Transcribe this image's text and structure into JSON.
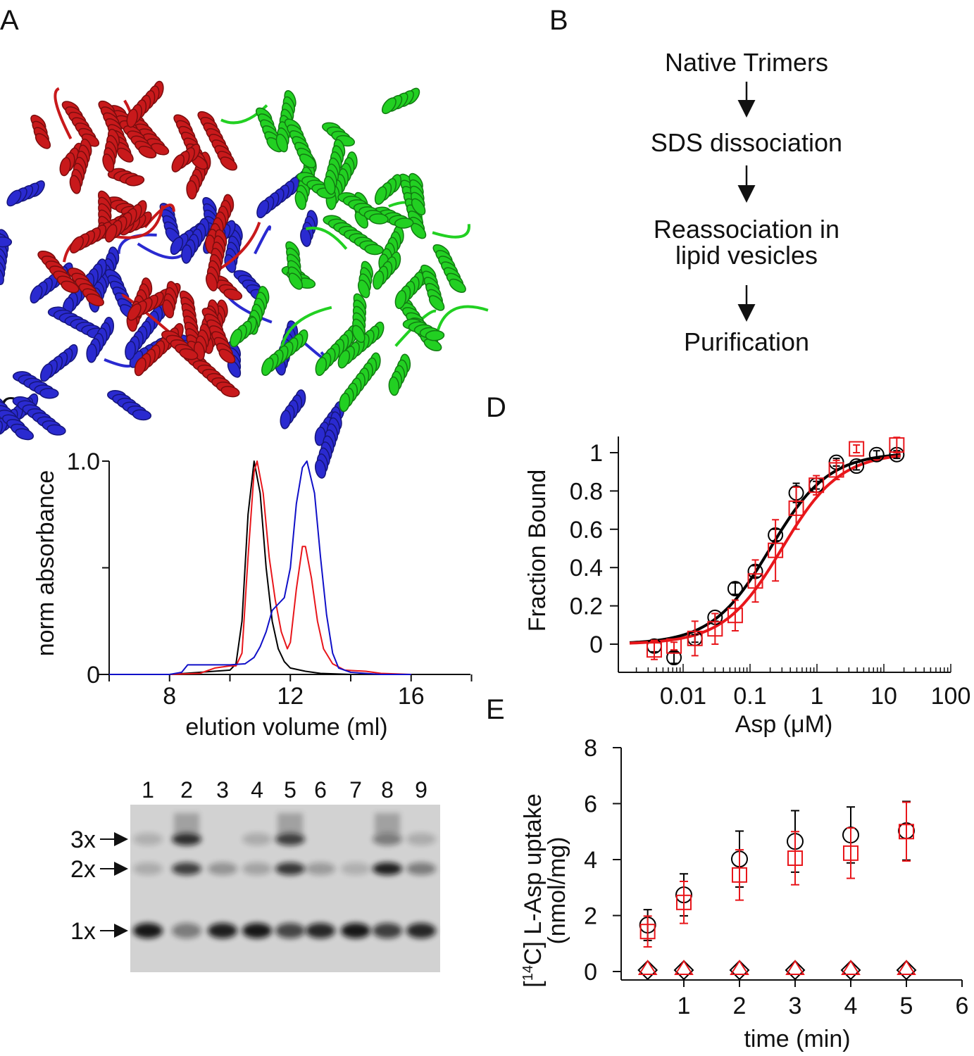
{
  "panels": {
    "a": "A",
    "b": "B",
    "c": "C",
    "d": "D",
    "e": "E"
  },
  "panel_a": {
    "chain_colors": [
      "#c8191b",
      "#2a2ad0",
      "#22d022"
    ]
  },
  "flowchart": {
    "steps": [
      "Native Trimers",
      "SDS dissociation",
      "Reassociation in",
      "lipid vesicles",
      "Purification"
    ]
  },
  "chart_data": [
    {
      "type": "line",
      "panel": "C",
      "xlabel": "elution volume (ml)",
      "ylabel": "norm absorbance",
      "xlim": [
        6,
        18
      ],
      "ylim": [
        0,
        1.0
      ],
      "xticks": [
        8,
        12,
        16
      ],
      "xtick_labels": [
        "8",
        "12",
        "16"
      ],
      "yticks": [
        0,
        0.5,
        1.0
      ],
      "ytick_labels": [
        "0",
        "",
        "1.0"
      ],
      "grid": false,
      "series": [
        {
          "color": "#000000",
          "points": [
            [
              6,
              0
            ],
            [
              8,
              0
            ],
            [
              9,
              0.01
            ],
            [
              10,
              0.02
            ],
            [
              10.2,
              0.05
            ],
            [
              10.4,
              0.25
            ],
            [
              10.6,
              0.75
            ],
            [
              10.8,
              1.0
            ],
            [
              11.0,
              0.85
            ],
            [
              11.2,
              0.5
            ],
            [
              11.4,
              0.25
            ],
            [
              11.6,
              0.12
            ],
            [
              11.8,
              0.06
            ],
            [
              12,
              0.03
            ],
            [
              12.5,
              0.015
            ],
            [
              13,
              0.005
            ],
            [
              14,
              0
            ]
          ]
        },
        {
          "color": "#e8161b",
          "points": [
            [
              6,
              0
            ],
            [
              8,
              0
            ],
            [
              9,
              0.005
            ],
            [
              9.5,
              0.03
            ],
            [
              10,
              0.04
            ],
            [
              10.2,
              0.04
            ],
            [
              10.4,
              0.1
            ],
            [
              10.6,
              0.55
            ],
            [
              10.8,
              0.95
            ],
            [
              10.9,
              1.0
            ],
            [
              11.1,
              0.85
            ],
            [
              11.3,
              0.55
            ],
            [
              11.5,
              0.35
            ],
            [
              11.7,
              0.2
            ],
            [
              11.9,
              0.12
            ],
            [
              12.0,
              0.15
            ],
            [
              12.2,
              0.4
            ],
            [
              12.4,
              0.6
            ],
            [
              12.5,
              0.6
            ],
            [
              12.7,
              0.45
            ],
            [
              12.9,
              0.25
            ],
            [
              13.1,
              0.12
            ],
            [
              13.4,
              0.05
            ],
            [
              13.8,
              0.02
            ],
            [
              14.5,
              0.015
            ],
            [
              15,
              0.005
            ],
            [
              16,
              0
            ]
          ]
        },
        {
          "color": "#1010c8",
          "points": [
            [
              6,
              0
            ],
            [
              8,
              0
            ],
            [
              8.4,
              0.01
            ],
            [
              8.6,
              0.045
            ],
            [
              9,
              0.045
            ],
            [
              10,
              0.045
            ],
            [
              10.5,
              0.05
            ],
            [
              10.8,
              0.08
            ],
            [
              11,
              0.13
            ],
            [
              11.2,
              0.2
            ],
            [
              11.4,
              0.3
            ],
            [
              11.6,
              0.33
            ],
            [
              11.8,
              0.36
            ],
            [
              12,
              0.5
            ],
            [
              12.2,
              0.8
            ],
            [
              12.4,
              0.97
            ],
            [
              12.55,
              1.0
            ],
            [
              12.8,
              0.85
            ],
            [
              13,
              0.55
            ],
            [
              13.2,
              0.28
            ],
            [
              13.4,
              0.1
            ],
            [
              13.6,
              0.03
            ],
            [
              14,
              0.01
            ],
            [
              15,
              0
            ],
            [
              16,
              0
            ]
          ]
        }
      ]
    },
    {
      "type": "scatter",
      "panel": "D",
      "xlabel": "Asp (μM)",
      "ylabel": "Fraction Bound",
      "xscale": "log",
      "xlim": [
        0.001,
        100
      ],
      "ylim": [
        -0.15,
        1.08
      ],
      "xticks": [
        0.01,
        0.1,
        1,
        10,
        100
      ],
      "xtick_labels": [
        "0.01",
        "0.1",
        "1",
        "10",
        "100"
      ],
      "yticks": [
        0,
        0.2,
        0.4,
        0.6,
        0.8,
        1
      ],
      "ytick_labels": [
        "0",
        "0.2",
        "0.4",
        "0.6",
        "0.8",
        "1"
      ],
      "grid": false,
      "series": [
        {
          "color": "#000000",
          "marker": "circle",
          "x": [
            0.0037,
            0.0073,
            0.015,
            0.03,
            0.06,
            0.12,
            0.24,
            0.49,
            0.98,
            1.95,
            3.9,
            7.8,
            15.6
          ],
          "y": [
            -0.01,
            -0.07,
            0.03,
            0.14,
            0.29,
            0.38,
            0.57,
            0.79,
            0.83,
            0.95,
            0.93,
            0.99,
            0.99
          ],
          "err": [
            0.03,
            0.03,
            0.02,
            0.02,
            0.03,
            0.03,
            0.03,
            0.05,
            0.02,
            0.02,
            0.02,
            0.02,
            0.02
          ],
          "fit": {
            "ec50": 0.2,
            "hill": 1.0,
            "bottom": 0.0,
            "top": 1.0
          }
        },
        {
          "color": "#e8161b",
          "marker": "square",
          "x": [
            0.0037,
            0.0073,
            0.015,
            0.03,
            0.06,
            0.12,
            0.24,
            0.49,
            0.98,
            1.95,
            3.9,
            15.6
          ],
          "y": [
            -0.03,
            -0.01,
            0.03,
            0.08,
            0.15,
            0.33,
            0.49,
            0.71,
            0.83,
            0.91,
            1.02,
            1.04
          ],
          "err": [
            0.05,
            0.02,
            0.09,
            0.08,
            0.08,
            0.11,
            0.16,
            0.11,
            0.05,
            0.05,
            0.02,
            0.04
          ],
          "fit": {
            "ec50": 0.3,
            "hill": 1.0,
            "bottom": 0.0,
            "top": 1.0
          }
        }
      ]
    },
    {
      "type": "scatter",
      "panel": "E",
      "xlabel": "time (min)",
      "ylabel": "[14C] L-Asp uptake",
      "ylabel_sup": "14",
      "ylabel_parts": [
        "[",
        "C] L-Asp uptake"
      ],
      "ylabel_unit": "(nmol/mg)",
      "xlim": [
        -0.13,
        6
      ],
      "ylim": [
        -0.3,
        8
      ],
      "xticks": [
        1,
        2,
        3,
        4,
        5,
        6
      ],
      "xtick_labels": [
        "1",
        "2",
        "3",
        "4",
        "5",
        "6"
      ],
      "yticks": [
        0,
        2,
        4,
        6,
        8
      ],
      "ytick_labels": [
        "0",
        "2",
        "4",
        "6",
        "8"
      ],
      "grid": false,
      "series": [
        {
          "color": "#000000",
          "marker": "circle",
          "x": [
            0.35,
            1,
            2,
            3,
            4,
            5
          ],
          "y": [
            1.66,
            2.74,
            4.02,
            4.65,
            4.88,
            5.03
          ],
          "err": [
            0.55,
            0.75,
            1.0,
            1.1,
            1.0,
            1.05
          ]
        },
        {
          "color": "#e8161b",
          "marker": "square",
          "x": [
            0.35,
            1,
            2,
            3,
            4,
            5
          ],
          "y": [
            1.43,
            2.47,
            3.45,
            4.05,
            4.23,
            5.0
          ],
          "err": [
            0.55,
            0.75,
            0.9,
            0.95,
            0.9,
            1.05
          ]
        },
        {
          "color": "#000000",
          "marker": "diamond",
          "x": [
            0.35,
            1,
            2,
            3,
            4,
            5
          ],
          "y": [
            0.05,
            0.05,
            0.05,
            0.05,
            0.05,
            0.05
          ]
        },
        {
          "color": "#e8161b",
          "marker": "triangle",
          "x": [
            0.35,
            1,
            2,
            3,
            4,
            5
          ],
          "y": [
            0.05,
            0.05,
            0.05,
            0.05,
            0.05,
            0.05
          ]
        }
      ]
    }
  ],
  "gel": {
    "lanes": [
      "1",
      "2",
      "3",
      "4",
      "5",
      "6",
      "7",
      "8",
      "9"
    ],
    "markers": [
      "3x",
      "2x",
      "1x"
    ],
    "band_intensity": [
      {
        "1x": 1.0,
        "2x": 0.05,
        "3x": 0.03
      },
      {
        "1x": 0.35,
        "2x": 0.75,
        "3x": 0.85
      },
      {
        "1x": 0.95,
        "2x": 0.2,
        "3x": 0.0
      },
      {
        "1x": 1.0,
        "2x": 0.1,
        "3x": 0.05
      },
      {
        "1x": 0.7,
        "2x": 0.8,
        "3x": 0.75
      },
      {
        "1x": 0.9,
        "2x": 0.15,
        "3x": 0.0
      },
      {
        "1x": 1.0,
        "2x": 0.03,
        "3x": 0.0
      },
      {
        "1x": 0.75,
        "2x": 0.95,
        "3x": 0.35
      },
      {
        "1x": 0.9,
        "2x": 0.35,
        "3x": 0.05
      }
    ]
  }
}
